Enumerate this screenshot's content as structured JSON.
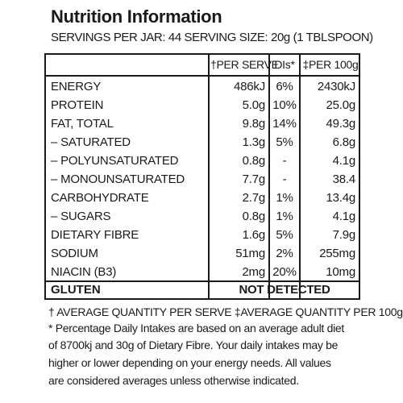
{
  "title": "Nutrition Information",
  "servings_line": "SERVINGS PER JAR: 44  SERVING SIZE: 20g (1 TBLSPOON)",
  "table": {
    "headers": {
      "per_serve": "†PER SERVE",
      "di": "DIs*",
      "per_100g": "‡PER 100g"
    },
    "rows": [
      {
        "name": "ENERGY",
        "per_serve": "486kJ",
        "di": "6%",
        "per_100g": "2430kJ"
      },
      {
        "name": "PROTEIN",
        "per_serve": "5.0g",
        "di": "10%",
        "per_100g": "25.0g"
      },
      {
        "name": "FAT, TOTAL",
        "per_serve": "9.8g",
        "di": "14%",
        "per_100g": "49.3g"
      },
      {
        "name": "– SATURATED",
        "per_serve": "1.3g",
        "di": "5%",
        "per_100g": "6.8g"
      },
      {
        "name": "– POLYUNSATURATED",
        "per_serve": "0.8g",
        "di": "-",
        "per_100g": "4.1g"
      },
      {
        "name": "– MONOUNSATURATED",
        "per_serve": "7.7g",
        "di": "-",
        "per_100g": "38.4"
      },
      {
        "name": "CARBOHYDRATE",
        "per_serve": "2.7g",
        "di": "1%",
        "per_100g": "13.4g"
      },
      {
        "name": "– SUGARS",
        "per_serve": "0.8g",
        "di": "1%",
        "per_100g": "4.1g"
      },
      {
        "name": "DIETARY FIBRE",
        "per_serve": "1.6g",
        "di": "5%",
        "per_100g": "7.9g"
      },
      {
        "name": "SODIUM",
        "per_serve": "51mg",
        "di": "2%",
        "per_100g": "255mg"
      },
      {
        "name": "NIACIN (B3)",
        "per_serve": "2mg",
        "di": "20%",
        "per_100g": "10mg"
      }
    ],
    "gluten": {
      "name": "GLUTEN",
      "value": "NOT DETECTED"
    }
  },
  "footnotes": {
    "line1": "† AVERAGE QUANTITY PER SERVE  ‡AVERAGE QUANTITY PER 100g",
    "line2": "* Percentage Daily Intakes are based on an average adult diet",
    "line3": "of 8700kj and 30g of Dietary Fibre. Your daily intakes may be",
    "line4": "higher or lower depending on your energy needs. All values",
    "line5": "are considered averages unless otherwise indicated."
  }
}
